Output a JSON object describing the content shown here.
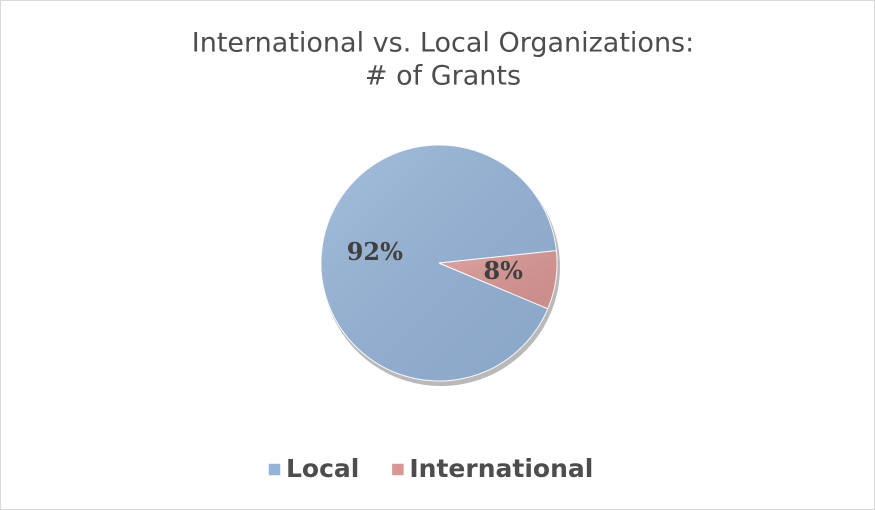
{
  "chart_data": {
    "type": "pie",
    "title": [
      "International vs. Local Organizations:",
      "# of Grants"
    ],
    "categories": [
      "Local",
      "International"
    ],
    "values": [
      92,
      8
    ],
    "value_labels": [
      "92%",
      "8%"
    ],
    "colors": [
      "#95b3d7",
      "#d99694"
    ],
    "legend": "bottom"
  }
}
